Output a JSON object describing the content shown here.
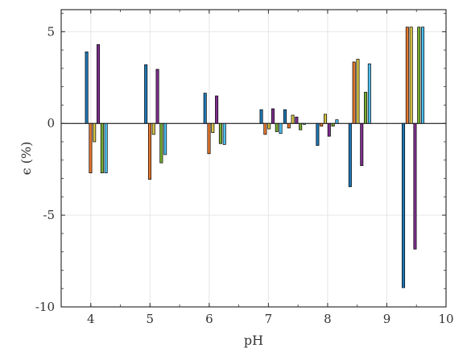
{
  "chart_data": {
    "type": "bar",
    "title": "",
    "xlabel": "pH",
    "ylabel": "ϵ (%)",
    "xlim": [
      3.5,
      10
    ],
    "ylim": [
      -10,
      6.2
    ],
    "xticks": [
      4,
      5,
      6,
      7,
      8,
      9,
      10
    ],
    "yticks": [
      -10,
      -5,
      0,
      5
    ],
    "xtick_labels": [
      "4",
      "5",
      "6",
      "7",
      "8",
      "9",
      "10"
    ],
    "ytick_labels": [
      "-10",
      "-5",
      "0",
      "5"
    ],
    "grid": true,
    "legend": "none",
    "series_colors": [
      "#1f77b4",
      "#e6772e",
      "#d4c245",
      "#7e2f8e",
      "#77ac30",
      "#4dbeee"
    ],
    "groups": [
      {
        "x": 3.93,
        "values": [
          3.9,
          -2.7,
          -1.0,
          4.3,
          -2.7,
          -2.7
        ]
      },
      {
        "x": 4.93,
        "values": [
          3.2,
          -3.05,
          -0.6,
          2.95,
          -2.15,
          -1.7
        ]
      },
      {
        "x": 5.93,
        "values": [
          1.65,
          -1.65,
          -0.5,
          1.5,
          -1.1,
          -1.15
        ]
      },
      {
        "x": 6.88,
        "values": [
          0.75,
          -0.6,
          -0.3,
          0.8,
          -0.45,
          -0.55
        ]
      },
      {
        "x": 7.28,
        "values": [
          0.75,
          -0.25,
          0.45,
          0.35,
          -0.35,
          -0.05
        ]
      },
      {
        "x": 7.83,
        "values": [
          -1.2,
          -0.15,
          0.5,
          -0.7,
          -0.15,
          0.2
        ]
      },
      {
        "x": 8.38,
        "values": [
          -3.45,
          3.35,
          3.5,
          -2.3,
          1.7,
          3.25
        ]
      },
      {
        "x": 9.28,
        "values": [
          -8.95,
          5.25,
          5.25,
          -6.85,
          5.25,
          5.25
        ]
      }
    ]
  }
}
